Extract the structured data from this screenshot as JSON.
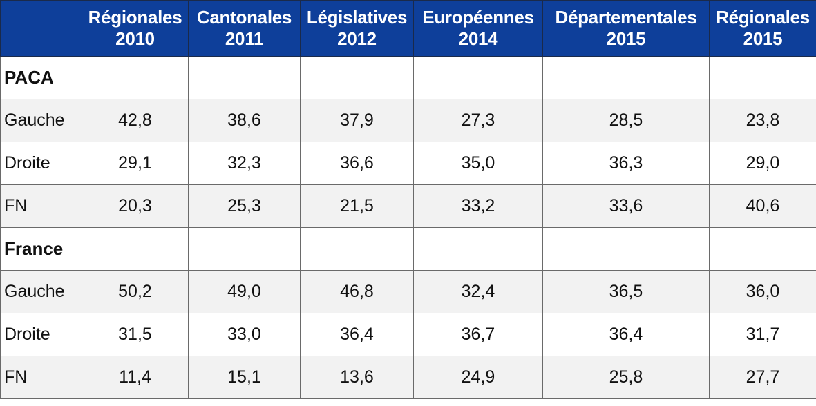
{
  "table": {
    "header": {
      "corner": "",
      "columns": [
        {
          "line1": "Régionales",
          "line2": "2010"
        },
        {
          "line1": "Cantonales",
          "line2": "2011"
        },
        {
          "line1": "Législatives",
          "line2": "2012"
        },
        {
          "line1": "Européennes",
          "line2": "2014"
        },
        {
          "line1": "Départementales",
          "line2": "2015"
        },
        {
          "line1": "Régionales",
          "line2": "2015"
        }
      ]
    },
    "sections": [
      {
        "title": "PACA",
        "rows": [
          {
            "label": "Gauche",
            "values": [
              "42,8",
              "38,6",
              "37,9",
              "27,3",
              "28,5",
              "23,8"
            ]
          },
          {
            "label": "Droite",
            "values": [
              "29,1",
              "32,3",
              "36,6",
              "35,0",
              "36,3",
              "29,0"
            ]
          },
          {
            "label": "FN",
            "values": [
              "20,3",
              "25,3",
              "21,5",
              "33,2",
              "33,6",
              "40,6"
            ]
          }
        ]
      },
      {
        "title": "France",
        "rows": [
          {
            "label": "Gauche",
            "values": [
              "50,2",
              "49,0",
              "46,8",
              "32,4",
              "36,5",
              "36,0"
            ]
          },
          {
            "label": "Droite",
            "values": [
              "31,5",
              "33,0",
              "36,4",
              "36,7",
              "36,4",
              "31,7"
            ]
          },
          {
            "label": "FN",
            "values": [
              "11,4",
              "15,1",
              "13,6",
              "24,9",
              "25,8",
              "27,7"
            ]
          }
        ]
      }
    ]
  },
  "colors": {
    "header_bg": "#0e3f9a",
    "header_text": "#ffffff",
    "shaded_row": "#f2f2f2",
    "border": "#6a6a6a"
  }
}
